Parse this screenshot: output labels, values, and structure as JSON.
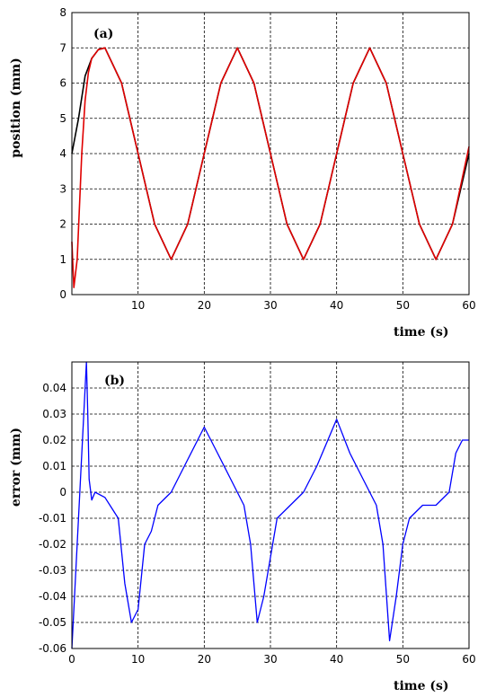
{
  "chart_data": [
    {
      "type": "line",
      "panel_label": "(a)",
      "xlabel": "time (s)",
      "ylabel": "position (mm)",
      "xlim": [
        0,
        60
      ],
      "ylim": [
        0,
        8
      ],
      "x_ticks": [
        "10",
        "20",
        "30",
        "40",
        "50",
        "60"
      ],
      "y_ticks": [
        "0",
        "1",
        "2",
        "3",
        "4",
        "5",
        "6",
        "7",
        "8"
      ],
      "grid": true,
      "series": [
        {
          "color": "#000000",
          "x": [
            0,
            1,
            2,
            3,
            4,
            5,
            7.5,
            10,
            12.5,
            15,
            17.5,
            20,
            22.5,
            25,
            27.5,
            30,
            32.5,
            35,
            37.5,
            40,
            42.5,
            45,
            47.5,
            50,
            52.5,
            55,
            57.5,
            60
          ],
          "y": [
            4.0,
            5.0,
            6.2,
            6.7,
            6.95,
            7.0,
            6.0,
            4.0,
            2.0,
            1.0,
            2.0,
            4.0,
            6.0,
            7.0,
            6.0,
            4.0,
            2.0,
            1.0,
            2.0,
            4.0,
            6.0,
            7.0,
            6.0,
            4.0,
            2.0,
            1.0,
            2.0,
            4.0
          ]
        },
        {
          "color": "#e00000",
          "x": [
            0,
            0.3,
            0.8,
            1.5,
            2.0,
            2.5,
            3,
            4,
            5,
            7.5,
            10,
            12.5,
            15,
            17.5,
            20,
            22.5,
            25,
            27.5,
            30,
            32.5,
            35,
            37.5,
            40,
            42.5,
            45,
            47.5,
            50,
            52.5,
            55,
            57.5,
            60
          ],
          "y": [
            1.5,
            0.2,
            1.0,
            4.0,
            5.5,
            6.3,
            6.7,
            6.95,
            7.0,
            6.0,
            4.0,
            2.0,
            1.0,
            2.0,
            4.0,
            6.0,
            7.0,
            6.0,
            4.0,
            2.0,
            1.0,
            2.0,
            4.0,
            6.0,
            7.0,
            6.0,
            4.0,
            2.0,
            1.0,
            2.0,
            4.2
          ]
        }
      ]
    },
    {
      "type": "line",
      "panel_label": "(b)",
      "xlabel": "time (s)",
      "ylabel": "error (mm)",
      "xlim": [
        0,
        60
      ],
      "ylim": [
        -0.06,
        0.05
      ],
      "x_ticks": [
        "0",
        "10",
        "20",
        "30",
        "40",
        "50",
        "60"
      ],
      "y_ticks": [
        "0.04",
        "0.03",
        "0.02",
        "0.01",
        "0",
        "-0.01",
        "-0.02",
        "-0.03",
        "-0.04",
        "-0.05",
        "-0.06"
      ],
      "grid": true,
      "series": [
        {
          "color": "#0000ff",
          "x": [
            0,
            2.2,
            2.4,
            2.6,
            3.0,
            3.5,
            5,
            7,
            8,
            9,
            10,
            11,
            12,
            13,
            15,
            17,
            20,
            22,
            24,
            26,
            27,
            28,
            29,
            30,
            31,
            33,
            35,
            37,
            40,
            42,
            44,
            46,
            47,
            48,
            49,
            50,
            51,
            53,
            55,
            57,
            58,
            59,
            60
          ],
          "y": [
            -0.06,
            0.05,
            0.03,
            0.005,
            -0.003,
            0.0,
            -0.002,
            -0.01,
            -0.035,
            -0.05,
            -0.045,
            -0.02,
            -0.015,
            -0.005,
            0.0,
            0.01,
            0.025,
            0.015,
            0.005,
            -0.005,
            -0.02,
            -0.05,
            -0.04,
            -0.025,
            -0.01,
            -0.005,
            0.0,
            0.01,
            0.028,
            0.015,
            0.005,
            -0.005,
            -0.02,
            -0.057,
            -0.04,
            -0.02,
            -0.01,
            -0.005,
            -0.005,
            0.0,
            0.015,
            0.02,
            0.02
          ]
        }
      ]
    }
  ]
}
